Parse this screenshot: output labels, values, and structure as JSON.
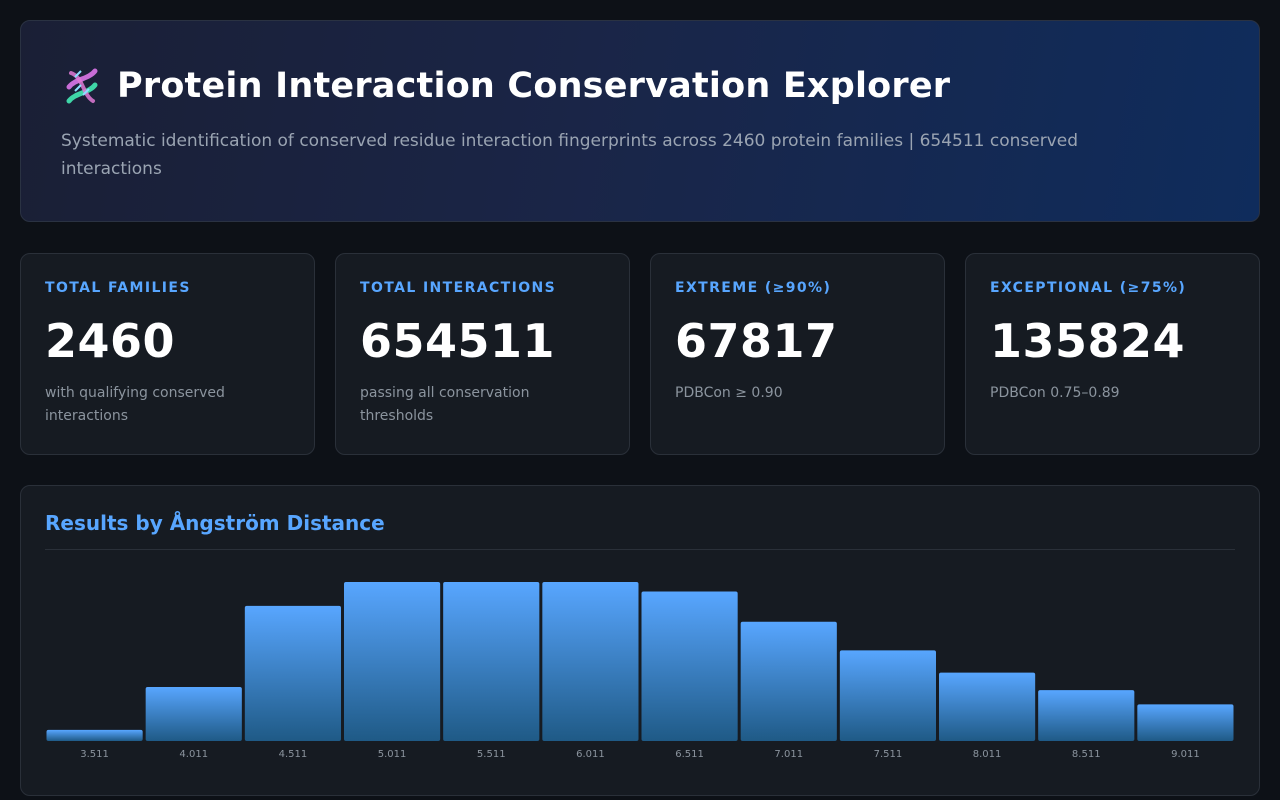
{
  "header": {
    "title": "Protein Interaction Conservation Explorer",
    "subtitle": "Systematic identification of conserved residue interaction fingerprints across 2460 protein families | 654511 conserved interactions"
  },
  "stats": [
    {
      "label": "TOTAL FAMILIES",
      "value": "2460",
      "note": "with qualifying conserved interactions"
    },
    {
      "label": "TOTAL INTERACTIONS",
      "value": "654511",
      "note": "passing all conservation thresholds"
    },
    {
      "label": "EXTREME (≥90%)",
      "value": "67817",
      "note": "PDBCon ≥ 0.90"
    },
    {
      "label": "EXCEPTIONAL (≥75%)",
      "value": "135824",
      "note": "PDBCon 0.75–0.89"
    }
  ],
  "chart_panel": {
    "title": "Results by Ångström Distance"
  },
  "colors": {
    "accent": "#58a6ff",
    "bar_top": "#58a6ff",
    "bar_bottom": "#1f5a86"
  },
  "chart_data": {
    "type": "bar",
    "categories": [
      "3.511",
      "4.011",
      "4.511",
      "5.011",
      "5.511",
      "6.011",
      "6.511",
      "7.011",
      "7.511",
      "8.011",
      "8.511",
      "9.011"
    ],
    "values": [
      7,
      34,
      85,
      100,
      100,
      100,
      94,
      75,
      57,
      43,
      32,
      23
    ],
    "ylim": [
      0,
      100
    ],
    "grid": false
  }
}
